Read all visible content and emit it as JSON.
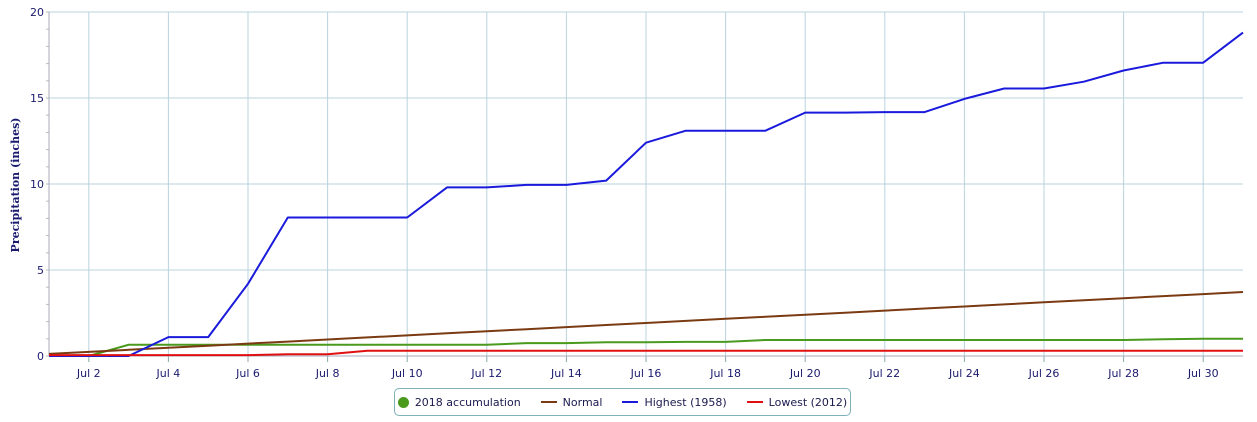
{
  "chart_data": {
    "type": "line",
    "title": "",
    "xlabel": "",
    "ylabel": "Precipitation (inches)",
    "ylim": [
      0,
      20
    ],
    "yticks": [
      "0",
      "5",
      "10",
      "15",
      "20"
    ],
    "xlim": [
      1,
      31
    ],
    "xticks": [
      {
        "day": 2,
        "label": "Jul 2"
      },
      {
        "day": 4,
        "label": "Jul 4"
      },
      {
        "day": 6,
        "label": "Jul 6"
      },
      {
        "day": 8,
        "label": "Jul 8"
      },
      {
        "day": 10,
        "label": "Jul 10"
      },
      {
        "day": 12,
        "label": "Jul 12"
      },
      {
        "day": 14,
        "label": "Jul 14"
      },
      {
        "day": 16,
        "label": "Jul 16"
      },
      {
        "day": 18,
        "label": "Jul 18"
      },
      {
        "day": 20,
        "label": "Jul 20"
      },
      {
        "day": 22,
        "label": "Jul 22"
      },
      {
        "day": 24,
        "label": "Jul 24"
      },
      {
        "day": 26,
        "label": "Jul 26"
      },
      {
        "day": 28,
        "label": "Jul 28"
      },
      {
        "day": 30,
        "label": "Jul 30"
      }
    ],
    "grid": true,
    "legend_position": "bottom-center",
    "x": [
      1,
      2,
      3,
      4,
      5,
      6,
      7,
      8,
      9,
      10,
      11,
      12,
      13,
      14,
      15,
      16,
      17,
      18,
      19,
      20,
      21,
      22,
      23,
      24,
      25,
      26,
      27,
      28,
      29,
      30,
      31
    ],
    "series": [
      {
        "name": "2018 accumulation",
        "color": "#4a9a1e",
        "marker": "dot",
        "values": [
          0.0,
          0.0,
          0.65,
          0.65,
          0.65,
          0.65,
          0.65,
          0.65,
          0.65,
          0.65,
          0.65,
          0.65,
          0.75,
          0.75,
          0.8,
          0.8,
          0.82,
          0.82,
          0.93,
          0.93,
          0.93,
          0.93,
          0.93,
          0.93,
          0.93,
          0.93,
          0.93,
          0.93,
          0.97,
          1.0,
          1.0
        ]
      },
      {
        "name": "Normal",
        "color": "#7a3b12",
        "marker": "line",
        "values": [
          0.12,
          0.24,
          0.36,
          0.48,
          0.6,
          0.72,
          0.84,
          0.96,
          1.08,
          1.2,
          1.32,
          1.44,
          1.56,
          1.68,
          1.8,
          1.92,
          2.04,
          2.16,
          2.28,
          2.4,
          2.52,
          2.64,
          2.76,
          2.88,
          3.0,
          3.12,
          3.24,
          3.36,
          3.48,
          3.6,
          3.72
        ]
      },
      {
        "name": "Highest (1958)",
        "color": "#1a1adc",
        "marker": "line",
        "values": [
          0.0,
          0.0,
          0.0,
          1.1,
          1.1,
          4.2,
          8.05,
          8.05,
          8.05,
          8.05,
          9.8,
          9.8,
          9.95,
          9.95,
          10.2,
          12.4,
          13.1,
          13.1,
          13.1,
          14.15,
          14.15,
          14.18,
          14.18,
          14.95,
          15.55,
          15.55,
          15.95,
          16.6,
          17.05,
          17.05,
          18.8
        ]
      },
      {
        "name": "Lowest (2012)",
        "color": "#e01010",
        "marker": "line",
        "values": [
          0.05,
          0.05,
          0.05,
          0.05,
          0.05,
          0.05,
          0.1,
          0.1,
          0.3,
          0.3,
          0.3,
          0.3,
          0.3,
          0.3,
          0.3,
          0.3,
          0.3,
          0.3,
          0.3,
          0.3,
          0.3,
          0.3,
          0.3,
          0.3,
          0.3,
          0.3,
          0.3,
          0.3,
          0.3,
          0.3,
          0.3
        ]
      }
    ]
  }
}
